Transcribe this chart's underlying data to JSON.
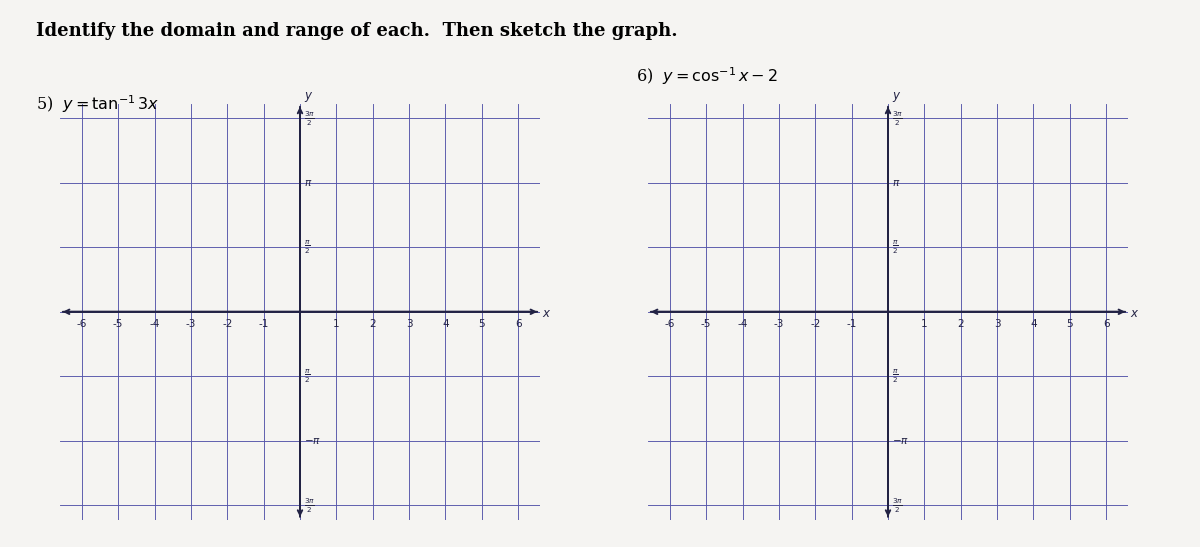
{
  "title": "Identify the domain and range of each.  Then sketch the graph.",
  "problem5_label": "5)  $y = \\tan^{-1} 3x$",
  "problem6_label": "6)  $y = \\cos^{-1} x - 2$",
  "bg_color": "#f5f4f2",
  "grid_color": "#5555aa",
  "axis_color": "#222244",
  "text_color": "#222244",
  "title_fontsize": 13,
  "label_fontsize": 11.5,
  "x_min": -6,
  "x_max": 6,
  "pi": 3.14159265358979
}
